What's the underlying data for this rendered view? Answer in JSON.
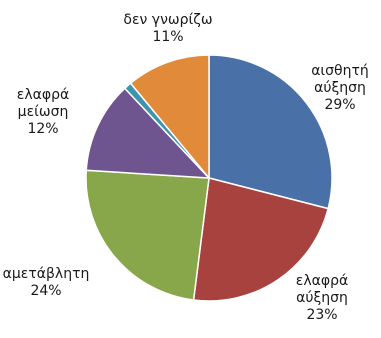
{
  "chart_data": {
    "type": "pie",
    "title": "",
    "start_angle_deg": 0,
    "direction": "clockwise",
    "slices": [
      {
        "label_lines": [
          "αισθητή",
          "αύξηση"
        ],
        "label": "αισθητή αύξηση",
        "value": 29,
        "value_text": "29%",
        "color": "#4a70a8"
      },
      {
        "label_lines": [
          "ελαφρά",
          "αύξηση"
        ],
        "label": "ελαφρά αύξηση",
        "value": 23,
        "value_text": "23%",
        "color": "#a8423f"
      },
      {
        "label_lines": [
          "αμετάβλητη"
        ],
        "label": "αμετάβλητη",
        "value": 24,
        "value_text": "24%",
        "color": "#88a64a"
      },
      {
        "label_lines": [
          "ελαφρά",
          "μείωση"
        ],
        "label": "ελαφρά μείωση",
        "value": 12,
        "value_text": "12%",
        "color": "#6e5590"
      },
      {
        "label_lines": [],
        "label": "",
        "value": 1,
        "value_text": "",
        "color": "#3d95ad"
      },
      {
        "label_lines": [
          "δεν γνωρίζω"
        ],
        "label": "δεν γνωρίζω",
        "value": 11,
        "value_text": "11%",
        "color": "#e08a3a"
      }
    ]
  }
}
